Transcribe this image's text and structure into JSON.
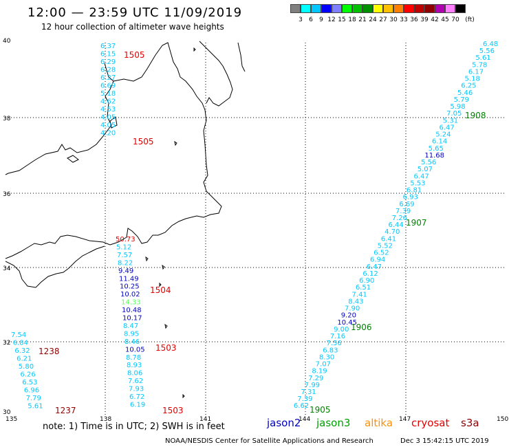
{
  "header": {
    "title": "12:00 — 23:59 UTC 11/09/2019",
    "subtitle": "12 hour collection of altimeter wave heights"
  },
  "color_scale": {
    "unit": "(ft)",
    "labels": [
      "3",
      "6",
      "9",
      "12",
      "15",
      "18",
      "21",
      "24",
      "27",
      "30",
      "33",
      "36",
      "39",
      "42",
      "45",
      "70"
    ],
    "colors": [
      "#808080",
      "#00ffff",
      "#00c8ff",
      "#0000ff",
      "#8080ff",
      "#00ff00",
      "#00c000",
      "#009000",
      "#ffff00",
      "#ffc000",
      "#ff8000",
      "#ff0000",
      "#c00000",
      "#900000",
      "#b000b0",
      "#ff80ff",
      "#000000"
    ]
  },
  "axes": {
    "lon_labels": [
      "135",
      "138",
      "141",
      "144",
      "147",
      "150"
    ],
    "lat_labels": [
      "40",
      "38",
      "36",
      "34",
      "32",
      "30"
    ]
  },
  "tracks": [
    {
      "values": [
        {
          "t": "6.37",
          "c": "#00c8ff"
        },
        {
          "t": "6.15",
          "c": "#00c8ff"
        },
        {
          "t": "6.29",
          "c": "#00c8ff"
        },
        {
          "t": "6.28",
          "c": "#00c8ff"
        },
        {
          "t": "6.27",
          "c": "#00c8ff"
        },
        {
          "t": "6.69",
          "c": "#00c8ff"
        },
        {
          "t": "5.18",
          "c": "#00c8ff"
        },
        {
          "t": "4.62",
          "c": "#00c8ff"
        },
        {
          "t": "4.53",
          "c": "#00c8ff"
        },
        {
          "t": "4.05",
          "c": "#00c8ff"
        },
        {
          "t": "4.05",
          "c": "#00c8ff"
        },
        {
          "t": "4.20",
          "c": "#00c8ff"
        }
      ],
      "times": [
        {
          "t": "1505",
          "c": "#e00000"
        },
        {
          "t": "1505",
          "c": "#e00000"
        }
      ]
    },
    {
      "values": [
        {
          "t": "50.73",
          "c": "#e00000"
        },
        {
          "t": "5.12",
          "c": "#00c8ff"
        },
        {
          "t": "7.57",
          "c": "#00c8ff"
        },
        {
          "t": "8.22",
          "c": "#00c8ff"
        },
        {
          "t": "9.49",
          "c": "#0000c0"
        },
        {
          "t": "11.49",
          "c": "#0000c0"
        },
        {
          "t": "10.25",
          "c": "#0000c0"
        },
        {
          "t": "10.02",
          "c": "#0000c0"
        },
        {
          "t": "14.33",
          "c": "#60ff60"
        },
        {
          "t": "10.48",
          "c": "#0000c0"
        },
        {
          "t": "10.17",
          "c": "#0000c0"
        },
        {
          "t": "8.47",
          "c": "#00c8ff"
        },
        {
          "t": "8.95",
          "c": "#00c8ff"
        },
        {
          "t": "8.46",
          "c": "#00c8ff"
        },
        {
          "t": "10.05",
          "c": "#0000c0"
        },
        {
          "t": "8.78",
          "c": "#00c8ff"
        },
        {
          "t": "8.93",
          "c": "#00c8ff"
        },
        {
          "t": "8.06",
          "c": "#00c8ff"
        },
        {
          "t": "7.62",
          "c": "#00c8ff"
        },
        {
          "t": "7.93",
          "c": "#00c8ff"
        },
        {
          "t": "6.72",
          "c": "#00c8ff"
        },
        {
          "t": "6.19",
          "c": "#00c8ff"
        }
      ],
      "times": [
        {
          "t": "1504",
          "c": "#e00000"
        },
        {
          "t": "1503",
          "c": "#e00000"
        },
        {
          "t": "1503",
          "c": "#e00000"
        }
      ]
    },
    {
      "values": [
        {
          "t": "7.54",
          "c": "#00c8ff"
        },
        {
          "t": "6.84",
          "c": "#00c8ff"
        },
        {
          "t": "6.32",
          "c": "#00c8ff"
        },
        {
          "t": "6.21",
          "c": "#00c8ff"
        },
        {
          "t": "5.80",
          "c": "#00c8ff"
        },
        {
          "t": "6.26",
          "c": "#00c8ff"
        },
        {
          "t": "6.53",
          "c": "#00c8ff"
        },
        {
          "t": "6.96",
          "c": "#00c8ff"
        },
        {
          "t": "7.79",
          "c": "#00c8ff"
        },
        {
          "t": "5.61",
          "c": "#00c8ff"
        }
      ],
      "times": [
        {
          "t": "1238",
          "c": "#900000"
        },
        {
          "t": "1237",
          "c": "#900000"
        }
      ]
    },
    {
      "values": [
        {
          "t": "6.48",
          "c": "#00c8ff"
        },
        {
          "t": "5.56",
          "c": "#00c8ff"
        },
        {
          "t": "5.61",
          "c": "#00c8ff"
        },
        {
          "t": "5.78",
          "c": "#00c8ff"
        },
        {
          "t": "6.17",
          "c": "#00c8ff"
        },
        {
          "t": "5.18",
          "c": "#00c8ff"
        },
        {
          "t": "6.25",
          "c": "#00c8ff"
        },
        {
          "t": "5.46",
          "c": "#00c8ff"
        },
        {
          "t": "5.79",
          "c": "#00c8ff"
        },
        {
          "t": "5.98",
          "c": "#00c8ff"
        },
        {
          "t": "7.05",
          "c": "#00c8ff"
        },
        {
          "t": "5.31",
          "c": "#00c8ff"
        },
        {
          "t": "6.47",
          "c": "#00c8ff"
        },
        {
          "t": "5.24",
          "c": "#00c8ff"
        },
        {
          "t": "6.14",
          "c": "#00c8ff"
        },
        {
          "t": "5.65",
          "c": "#00c8ff"
        },
        {
          "t": "11.68",
          "c": "#0000c0"
        },
        {
          "t": "5.56",
          "c": "#00c8ff"
        },
        {
          "t": "5.07",
          "c": "#00c8ff"
        },
        {
          "t": "6.47",
          "c": "#00c8ff"
        },
        {
          "t": "5.53",
          "c": "#00c8ff"
        },
        {
          "t": "6.81",
          "c": "#00c8ff"
        },
        {
          "t": "6.93",
          "c": "#00c8ff"
        },
        {
          "t": "6.69",
          "c": "#00c8ff"
        },
        {
          "t": "7.39",
          "c": "#00c8ff"
        },
        {
          "t": "7.26",
          "c": "#00c8ff"
        },
        {
          "t": "6.44",
          "c": "#00c8ff"
        },
        {
          "t": "4.70",
          "c": "#00c8ff"
        },
        {
          "t": "6.41",
          "c": "#00c8ff"
        },
        {
          "t": "5.52",
          "c": "#00c8ff"
        },
        {
          "t": "6.52",
          "c": "#00c8ff"
        },
        {
          "t": "6.94",
          "c": "#00c8ff"
        },
        {
          "t": "6.47",
          "c": "#00c8ff"
        },
        {
          "t": "6.12",
          "c": "#00c8ff"
        },
        {
          "t": "6.90",
          "c": "#00c8ff"
        },
        {
          "t": "6.51",
          "c": "#00c8ff"
        },
        {
          "t": "7.41",
          "c": "#00c8ff"
        },
        {
          "t": "8.43",
          "c": "#00c8ff"
        },
        {
          "t": "7.90",
          "c": "#00c8ff"
        },
        {
          "t": "9.20",
          "c": "#0000c0"
        },
        {
          "t": "10.45",
          "c": "#0000c0"
        },
        {
          "t": "9.00",
          "c": "#00c8ff"
        },
        {
          "t": "7.16",
          "c": "#00c8ff"
        },
        {
          "t": "7.56",
          "c": "#00c8ff"
        },
        {
          "t": "6.83",
          "c": "#00c8ff"
        },
        {
          "t": "8.30",
          "c": "#00c8ff"
        },
        {
          "t": "7.07",
          "c": "#00c8ff"
        },
        {
          "t": "8.19",
          "c": "#00c8ff"
        },
        {
          "t": "7.29",
          "c": "#00c8ff"
        },
        {
          "t": "7.99",
          "c": "#00c8ff"
        },
        {
          "t": "7.31",
          "c": "#00c8ff"
        },
        {
          "t": "7.39",
          "c": "#00c8ff"
        },
        {
          "t": "6.62",
          "c": "#00c8ff"
        }
      ],
      "times": [
        {
          "t": "1908",
          "c": "#008000"
        },
        {
          "t": "1907",
          "c": "#008000"
        },
        {
          "t": "1906",
          "c": "#008000"
        },
        {
          "t": "1905",
          "c": "#008000"
        }
      ]
    }
  ],
  "footer": {
    "note": "note: 1) Time is in UTC; 2) SWH is in feet",
    "satellites": [
      {
        "name": "jason2",
        "color": "#0000c0"
      },
      {
        "name": "jason3",
        "color": "#00a000"
      },
      {
        "name": "altika",
        "color": "#ff9000"
      },
      {
        "name": "cryosat",
        "color": "#e00000"
      },
      {
        "name": "s3a",
        "color": "#900000"
      }
    ],
    "credit": "NOAA/NESDIS Center for Satellite Applications and Research",
    "generated": "Dec  3 15:42:15 UTC 2019"
  }
}
